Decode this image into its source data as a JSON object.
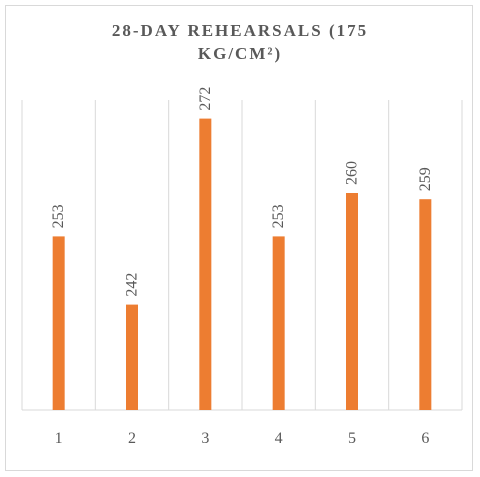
{
  "chart_data": {
    "type": "bar",
    "title_lines": [
      "28-DAY REHEARSALS (175",
      "KG/CM²)"
    ],
    "categories": [
      "1",
      "2",
      "3",
      "4",
      "5",
      "6"
    ],
    "values": [
      253,
      242,
      272,
      253,
      260,
      259
    ],
    "data_labels": [
      "253",
      "242",
      "272",
      "253",
      "260",
      "259"
    ],
    "ylim": [
      225,
      275
    ],
    "grid": "vertical",
    "bar_color": "#ed7d31",
    "grid_color": "#d9d9d9"
  }
}
